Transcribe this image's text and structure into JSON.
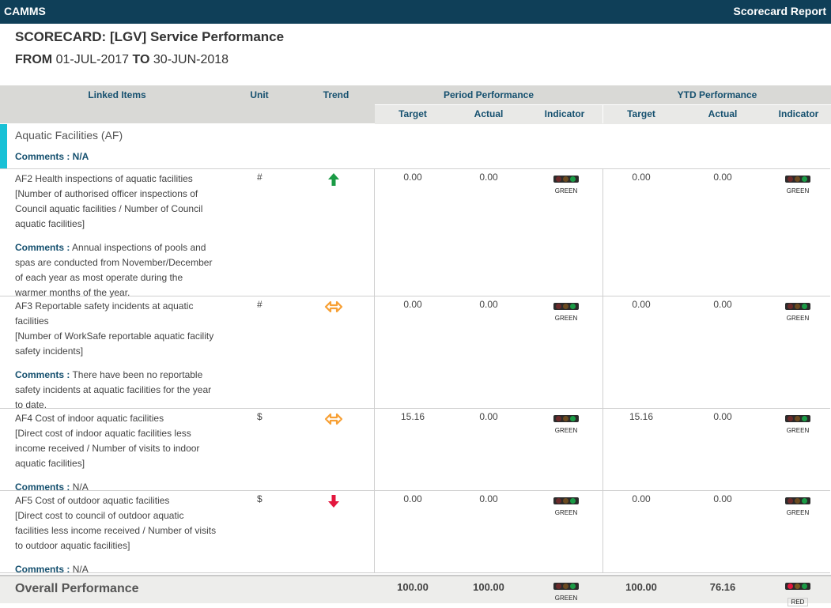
{
  "app": {
    "brand": "CAMMS",
    "report_title": "Scorecard Report"
  },
  "report": {
    "title": "SCORECARD: [LGV] Service Performance",
    "from_label": "FROM",
    "from_date": "01-JUL-2017",
    "to_label": "TO",
    "to_date": "30-JUN-2018"
  },
  "table_header": {
    "linked_items": "Linked Items",
    "unit": "Unit",
    "trend": "Trend",
    "period_performance": "Period Performance",
    "ytd_performance": "YTD Performance",
    "target": "Target",
    "actual": "Actual",
    "indicator": "Indicator"
  },
  "section": {
    "name": "Aquatic Facilities (AF)",
    "comments": "Comments : N/A"
  },
  "comments_label": "Comments :",
  "colors": {
    "green": "#1a9b45",
    "amber": "#f7a035",
    "red": "#e3173e",
    "header_bg": "#0f3f58",
    "accent": "#19c1d6"
  },
  "rows": [
    {
      "desc_lines": [
        "AF2 Health inspections of aquatic facilities",
        "[Number of authorised officer inspections of",
        "Council aquatic facilities / Number of Council",
        "aquatic facilities]"
      ],
      "comment_lines": [
        "Annual inspections of pools and",
        "spas are conducted from November/December",
        "of each year as most operate during the",
        "warmer months of the year."
      ],
      "unit": "#",
      "trend": "up-arrow-icon",
      "period_target": "0.00",
      "period_actual": "0.00",
      "period_indicator": "GREEN",
      "ytd_target": "0.00",
      "ytd_actual": "0.00",
      "ytd_indicator": "GREEN"
    },
    {
      "desc_lines": [
        "AF3 Reportable safety incidents at aquatic",
        "facilities",
        "[Number of WorkSafe reportable aquatic facility",
        "safety incidents]"
      ],
      "comment_lines": [
        "There have been no reportable",
        "safety incidents at aquatic facilities for the year",
        "to date."
      ],
      "unit": "#",
      "trend": "left-right-arrow-icon",
      "period_target": "0.00",
      "period_actual": "0.00",
      "period_indicator": "GREEN",
      "ytd_target": "0.00",
      "ytd_actual": "0.00",
      "ytd_indicator": "GREEN"
    },
    {
      "desc_lines": [
        "AF4 Cost of indoor aquatic facilities",
        "[Direct cost of indoor aquatic facilities less",
        "income received / Number of visits to indoor",
        "aquatic facilities]"
      ],
      "comment_lines": [
        "N/A"
      ],
      "unit": "$",
      "trend": "left-right-arrow-icon",
      "period_target": "15.16",
      "period_actual": "0.00",
      "period_indicator": "GREEN",
      "ytd_target": "15.16",
      "ytd_actual": "0.00",
      "ytd_indicator": "GREEN"
    },
    {
      "desc_lines": [
        "AF5 Cost of outdoor aquatic facilities",
        "[Direct cost to council of outdoor aquatic",
        "facilities less income received / Number of visits",
        "to outdoor aquatic facilities]"
      ],
      "comment_lines": [
        "N/A"
      ],
      "unit": "$",
      "trend": "down-arrow-icon",
      "period_target": "0.00",
      "period_actual": "0.00",
      "period_indicator": "GREEN",
      "ytd_target": "0.00",
      "ytd_actual": "0.00",
      "ytd_indicator": "GREEN"
    }
  ],
  "overall": {
    "label": "Overall Performance",
    "period_target": "100.00",
    "period_actual": "100.00",
    "period_indicator": "GREEN",
    "ytd_target": "100.00",
    "ytd_actual": "76.16",
    "ytd_indicator": "RED"
  }
}
